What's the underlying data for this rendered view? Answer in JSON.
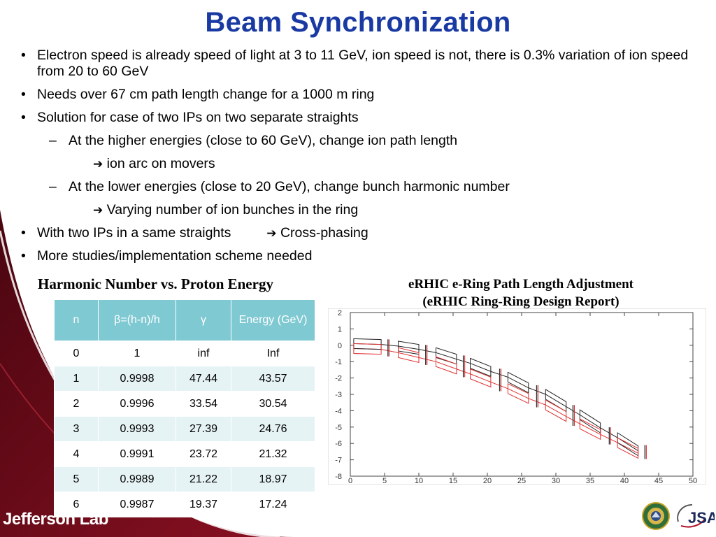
{
  "slide": {
    "title": "Beam Synchronization",
    "bullets": [
      {
        "level": 1,
        "marker": "•",
        "text": "Electron speed is already speed of light at 3 to 11 GeV, ion speed is not, there is 0.3% variation of ion speed from 20 to 60 GeV"
      },
      {
        "level": 1,
        "marker": "•",
        "text": "Needs over 67 cm path length change for a 1000 m ring"
      },
      {
        "level": 1,
        "marker": "•",
        "text": "Solution for case of two IPs on two separate straights"
      },
      {
        "level": 2,
        "marker": "–",
        "text": "At the higher energies (close to 60 GeV), change ion path length"
      },
      {
        "level": 3,
        "marker": "➔",
        "text": "ion arc on movers"
      },
      {
        "level": 2,
        "marker": "–",
        "text": "At the lower energies (close to 20 GeV), change bunch harmonic number"
      },
      {
        "level": 3,
        "marker": "➔",
        "text": "Varying number of ion bunches in the ring"
      },
      {
        "level": 1,
        "marker": "•",
        "text": "With two IPs in a same straights",
        "arrow": "➔",
        "suffix": "Cross-phasing"
      },
      {
        "level": 1,
        "marker": "•",
        "text": "More studies/implementation scheme needed"
      }
    ]
  },
  "table": {
    "title": "Harmonic Number vs. Proton Energy",
    "headers": [
      "n",
      "β=(h-n)/h",
      "γ",
      "Energy (GeV)"
    ],
    "rows": [
      [
        "0",
        "1",
        "inf",
        "Inf"
      ],
      [
        "1",
        "0.9998",
        "47.44",
        "43.57"
      ],
      [
        "2",
        "0.9996",
        "33.54",
        "30.54"
      ],
      [
        "3",
        "0.9993",
        "27.39",
        "24.76"
      ],
      [
        "4",
        "0.9991",
        "23.72",
        "21.32"
      ],
      [
        "5",
        "0.9989",
        "21.22",
        "18.97"
      ],
      [
        "6",
        "0.9987",
        "19.37",
        "17.24"
      ]
    ]
  },
  "figure": {
    "title_line1": "eRHIC e-Ring Path Length Adjustment",
    "title_line2": "(eRHIC Ring-Ring Design Report)"
  },
  "chart_data": {
    "type": "line",
    "title": "",
    "xlabel": "",
    "ylabel": "",
    "xlim": [
      0,
      50
    ],
    "ylim": [
      -8,
      2
    ],
    "xticks": [
      0,
      5,
      10,
      15,
      20,
      25,
      30,
      35,
      40,
      45,
      50
    ],
    "yticks": [
      2,
      1,
      0,
      -1,
      -2,
      -3,
      -4,
      -5,
      -6,
      -7,
      -8
    ],
    "series": [
      {
        "name": "black lattice",
        "color": "#222222",
        "x": [
          0.5,
          4.5,
          7,
          10,
          12.5,
          15.5,
          17.5,
          20.5,
          23,
          26,
          28.5,
          31.5,
          33.5,
          36.5,
          39,
          42
        ],
        "y": [
          0.1,
          0.05,
          -0.05,
          -0.25,
          -0.45,
          -0.85,
          -1.1,
          -1.6,
          -1.95,
          -2.6,
          -3.0,
          -3.75,
          -4.25,
          -5.05,
          -5.65,
          -6.45
        ]
      },
      {
        "name": "red lattice",
        "color": "#e03030",
        "x": [
          0.5,
          4.5,
          7,
          10,
          12.5,
          15.5,
          17.5,
          20.5,
          23,
          26,
          28.5,
          31.5,
          33.5,
          36.5,
          39,
          42
        ],
        "y": [
          -0.2,
          -0.25,
          -0.45,
          -0.75,
          -1.0,
          -1.45,
          -1.75,
          -2.25,
          -2.65,
          -3.25,
          -3.65,
          -4.35,
          -4.8,
          -5.45,
          -5.95,
          -6.6
        ]
      }
    ],
    "magnets": [
      {
        "x0": 0.5,
        "x1": 4.5,
        "dy": 0.6
      },
      {
        "x0": 7,
        "x1": 10,
        "dy": 0.6
      },
      {
        "x0": 12.5,
        "x1": 15.5,
        "dy": 0.6
      },
      {
        "x0": 17.5,
        "x1": 20.5,
        "dy": 0.6
      },
      {
        "x0": 23,
        "x1": 26,
        "dy": 0.6
      },
      {
        "x0": 28.5,
        "x1": 31.5,
        "dy": 0.6
      },
      {
        "x0": 33.5,
        "x1": 36.5,
        "dy": 0.6
      },
      {
        "x0": 39,
        "x1": 42,
        "dy": 0.6
      }
    ],
    "markers": [
      5.5,
      11,
      16.5,
      21.8,
      27.2,
      32.5,
      37.8,
      43
    ]
  },
  "footer": {
    "logo_text": "Jefferson Lab",
    "jsa_text": "JSA",
    "colors": {
      "brand_maroon": "#7a0d1c",
      "title_blue": "#1a3aa3",
      "table_header": "#7fc9d3"
    }
  }
}
